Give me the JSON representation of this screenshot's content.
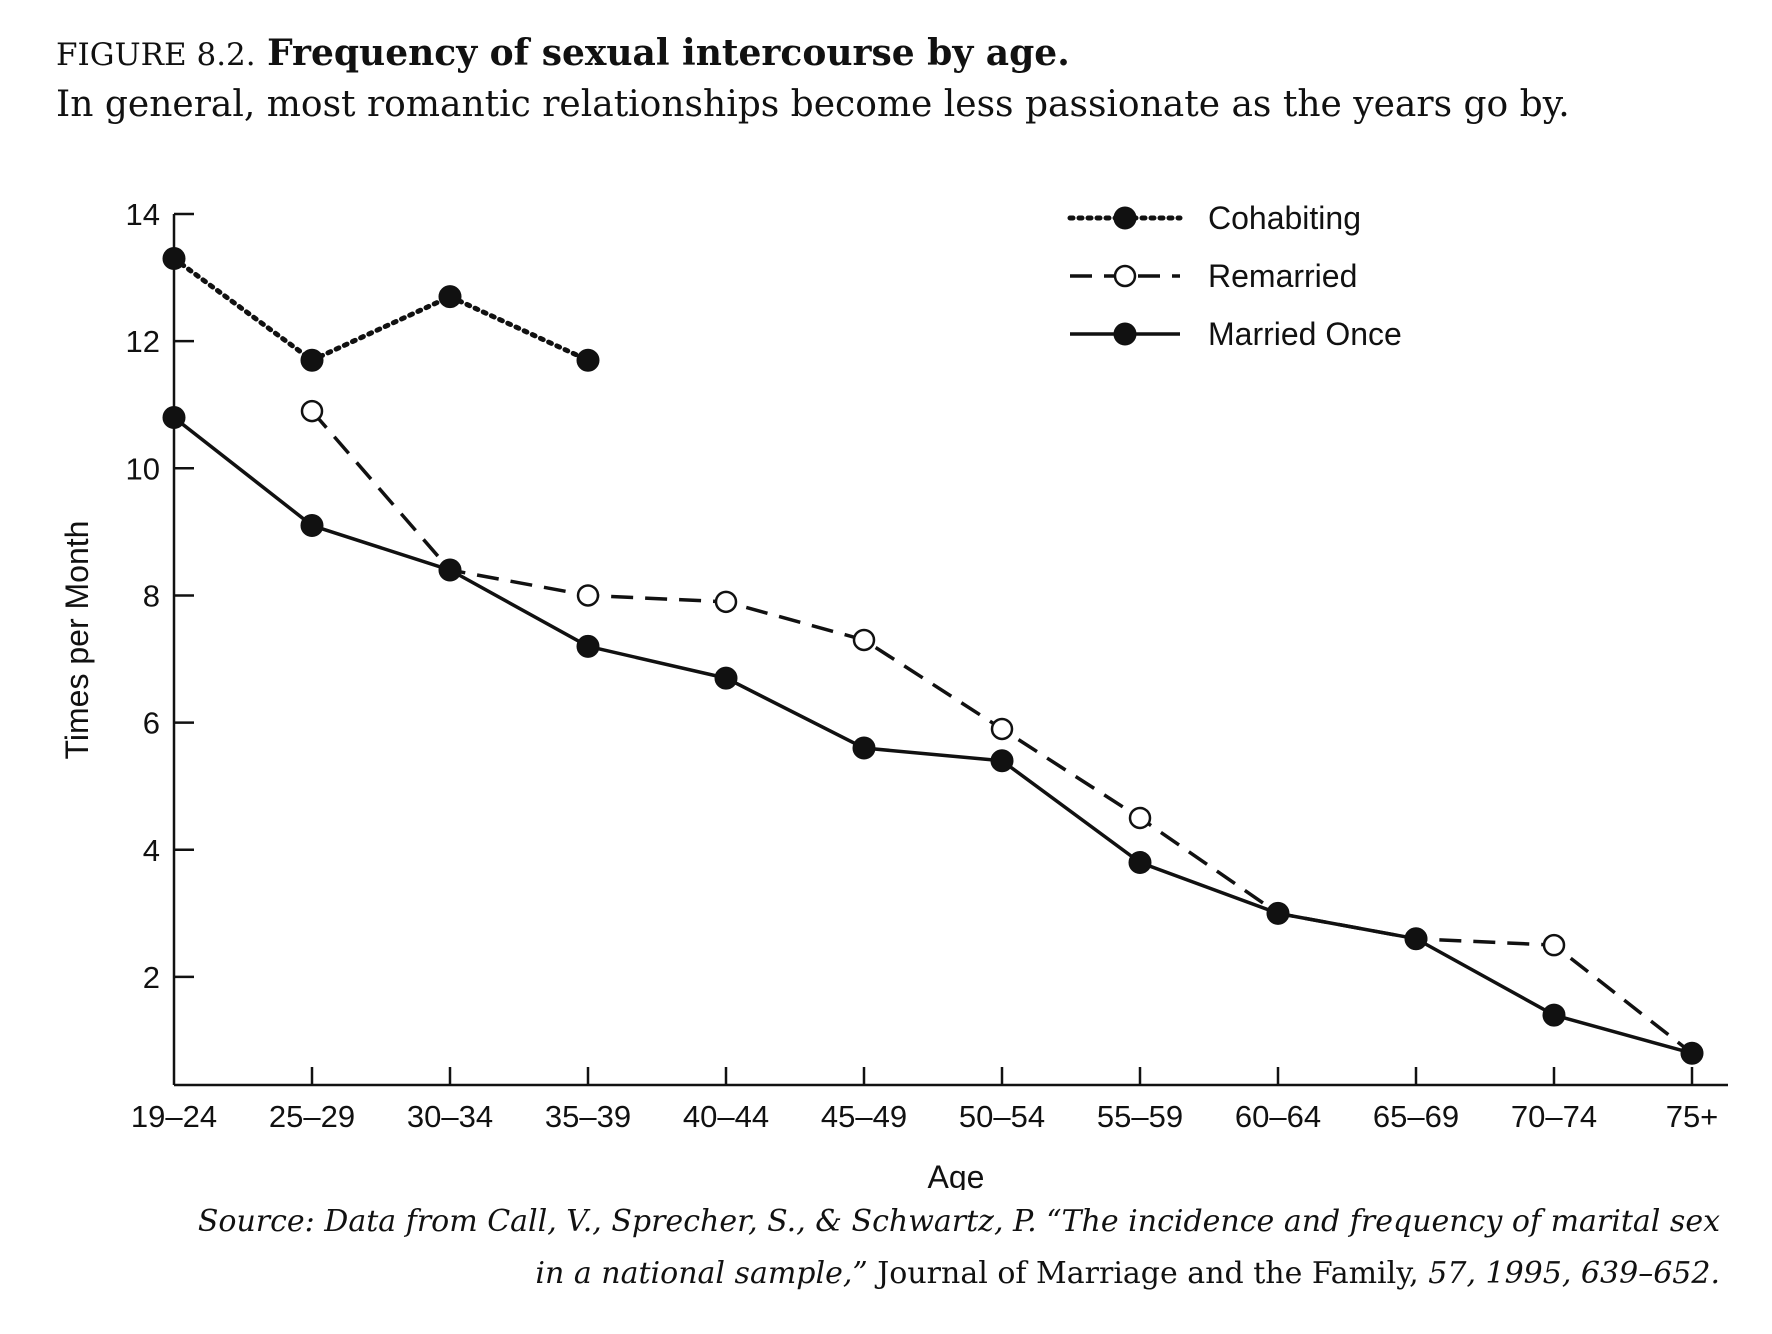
{
  "figure": {
    "label": "FIGURE 8.2.",
    "title": "Frequency of sexual intercourse by age.",
    "subtitle": "In general, most romantic relationships become less passionate as the years go by."
  },
  "source": {
    "part1": "Source: Data from Call, V., Sprecher, S., & Schwartz, P. “The incidence and frequency of marital sex",
    "part2": "in a national sample,”",
    "part3": " Journal of Marriage and the Family, ",
    "part4": "57, 1995, 639–652."
  },
  "chart_data": {
    "type": "line",
    "xlabel": "Age",
    "ylabel": "Times per Month",
    "categories": [
      "19–24",
      "25–29",
      "30–34",
      "35–39",
      "40–44",
      "45–49",
      "50–54",
      "55–59",
      "60–64",
      "65–69",
      "70–74",
      "75+"
    ],
    "ylim": [
      0.3,
      14
    ],
    "yticks": [
      2,
      4,
      6,
      8,
      10,
      12,
      14
    ],
    "grid": false,
    "legend_position": "top-right",
    "series": [
      {
        "name": "Cohabiting",
        "style": "dotted",
        "marker": "filled",
        "color": "#111111",
        "values": [
          13.3,
          11.7,
          12.7,
          11.7,
          null,
          null,
          null,
          null,
          null,
          null,
          null,
          null
        ]
      },
      {
        "name": "Remarried",
        "style": "dashed",
        "marker": "open",
        "color": "#111111",
        "values": [
          null,
          10.9,
          8.4,
          8.0,
          7.9,
          7.3,
          5.9,
          4.5,
          3.0,
          2.6,
          2.5,
          0.8
        ]
      },
      {
        "name": "Married Once",
        "style": "solid",
        "marker": "filled",
        "color": "#111111",
        "values": [
          10.8,
          9.1,
          8.4,
          7.2,
          6.7,
          5.6,
          5.4,
          3.8,
          3.0,
          2.6,
          1.4,
          0.8
        ]
      }
    ]
  }
}
